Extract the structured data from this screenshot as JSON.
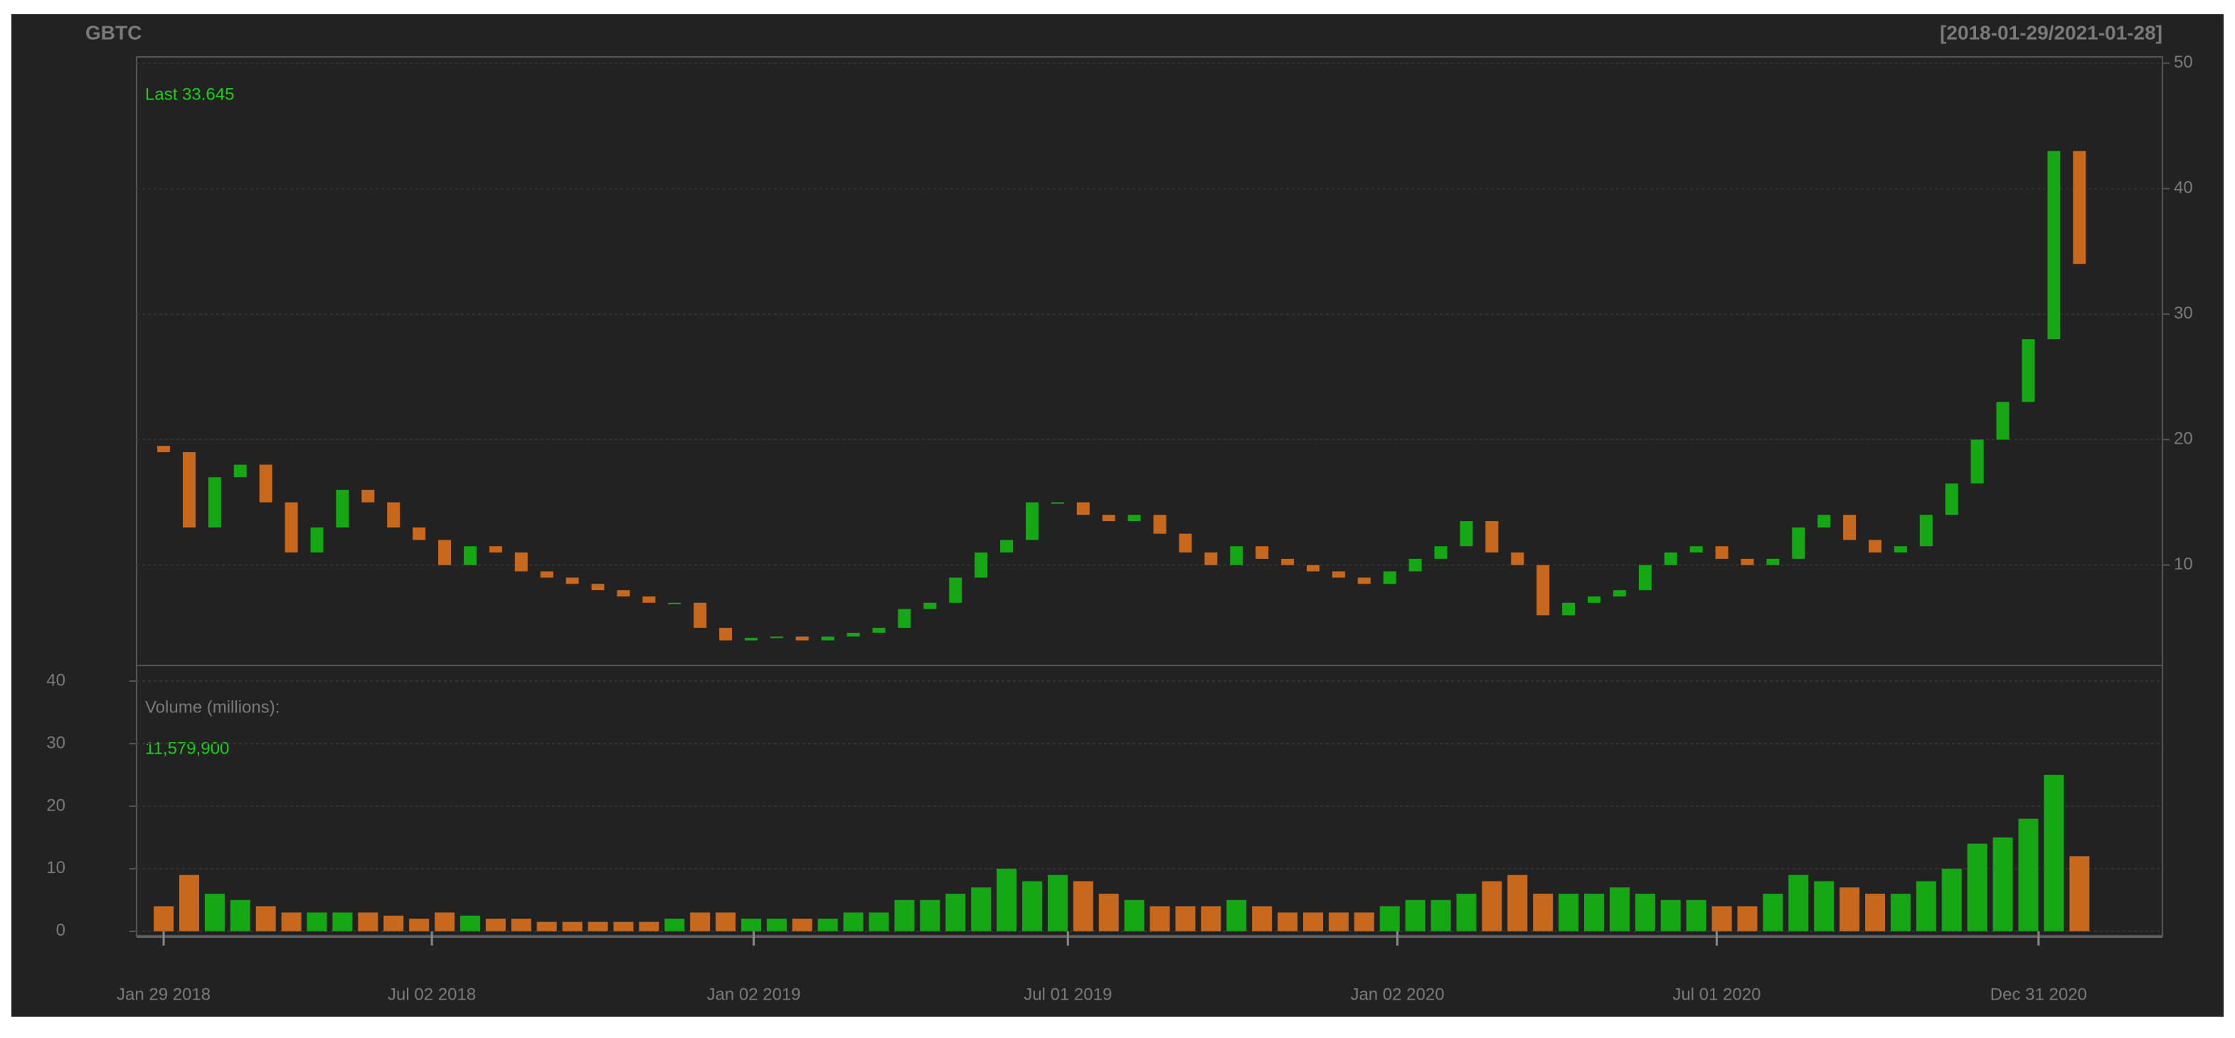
{
  "chart_data": [
    {
      "type": "candlestick",
      "title": "GBTC",
      "subtitle": "[2018-01-29/2021-01-28]",
      "annotation": "Last 33.645",
      "x": [
        0,
        10,
        20,
        30,
        40,
        50,
        60,
        70,
        80,
        90,
        100,
        110,
        120,
        130,
        140,
        150,
        160,
        170,
        180,
        190,
        200,
        210,
        220,
        230,
        240,
        250,
        260,
        270,
        280,
        290,
        300,
        310,
        320,
        330,
        340,
        350,
        360,
        370,
        380,
        390,
        400,
        410,
        420,
        430,
        440,
        450,
        460,
        470,
        480,
        490,
        500,
        510,
        520,
        530,
        540,
        550,
        560,
        570,
        580,
        590,
        600,
        610,
        620,
        630,
        640,
        650,
        660,
        670,
        680,
        690,
        700,
        710,
        720,
        730,
        740,
        750
      ],
      "open": [
        19.5,
        19,
        13,
        17,
        18,
        15,
        11,
        13,
        16,
        15,
        13,
        12,
        10,
        11.5,
        11,
        9.5,
        9,
        8.5,
        8,
        7.5,
        7,
        7,
        5,
        4,
        4.2,
        4.3,
        4,
        4.3,
        4.6,
        5,
        6.5,
        7,
        9,
        11,
        12,
        15,
        15,
        14,
        13.5,
        14,
        12.5,
        11,
        10,
        11.5,
        10.5,
        10,
        9.5,
        9,
        8.5,
        9.5,
        10.5,
        11.5,
        13.5,
        11,
        10,
        6,
        7,
        7.5,
        8,
        10,
        11,
        11.5,
        10.5,
        10,
        10.5,
        13,
        14,
        12,
        11,
        11.5,
        14,
        16.5,
        20,
        23,
        28,
        43
      ],
      "close": [
        19,
        13,
        17,
        18,
        15,
        11,
        13,
        16,
        15,
        13,
        12,
        10,
        11.5,
        11,
        9.5,
        9,
        8.5,
        8,
        7.5,
        7,
        7,
        5,
        4,
        4.2,
        4.3,
        4,
        4.3,
        4.6,
        5,
        6.5,
        7,
        9,
        11,
        12,
        15,
        15,
        14,
        13.5,
        14,
        12.5,
        11,
        10,
        11.5,
        10.5,
        10,
        9.5,
        9,
        8.5,
        9.5,
        10.5,
        11.5,
        13.5,
        11,
        10,
        6,
        7,
        7.5,
        8,
        10,
        11,
        11.5,
        10.5,
        10,
        10.5,
        13,
        14,
        12,
        11,
        11.5,
        14,
        16.5,
        20,
        23,
        28,
        43,
        34
      ],
      "color_up": "#14a814",
      "color_down": "#c8681c",
      "xlim": [
        -10.6,
        782.5
      ],
      "ylim": [
        2,
        50.5
      ],
      "yticks": [
        10,
        20,
        30,
        40,
        50
      ],
      "grid": true
    },
    {
      "type": "bar",
      "annotation": "Volume (millions):",
      "annotation_value": "11,579,900",
      "values": [
        4,
        9,
        6,
        5,
        4,
        3,
        3,
        3,
        3,
        2.5,
        2,
        3,
        2.5,
        2,
        2,
        1.5,
        1.5,
        1.5,
        1.5,
        1.5,
        2,
        3,
        3,
        2,
        2,
        2,
        2,
        3,
        3,
        5,
        5,
        6,
        7,
        10,
        8,
        9,
        8,
        6,
        5,
        4,
        4,
        4,
        5,
        4,
        3,
        3,
        3,
        3,
        4,
        5,
        5,
        6,
        8,
        9,
        6,
        6,
        6,
        7,
        6,
        5,
        5,
        4,
        4,
        6,
        9,
        8,
        7,
        6,
        6,
        8,
        10,
        14,
        15,
        18,
        25,
        12
      ],
      "xlim": [
        -10.6,
        782.5
      ],
      "ylim": [
        -0.7,
        42.5
      ],
      "yticks": [
        0,
        10,
        20,
        30,
        40
      ],
      "grid": true,
      "xticks": [
        {
          "value": 0,
          "label": "Jan 29 2018"
        },
        {
          "value": 105,
          "label": "Jul 02 2018"
        },
        {
          "value": 231,
          "label": "Jan 02 2019"
        },
        {
          "value": 354,
          "label": "Jul 01 2019"
        },
        {
          "value": 483,
          "label": "Jan 02 2020"
        },
        {
          "value": 608,
          "label": "Jul 01 2020"
        },
        {
          "value": 734,
          "label": "Dec 31 2020"
        }
      ]
    }
  ]
}
